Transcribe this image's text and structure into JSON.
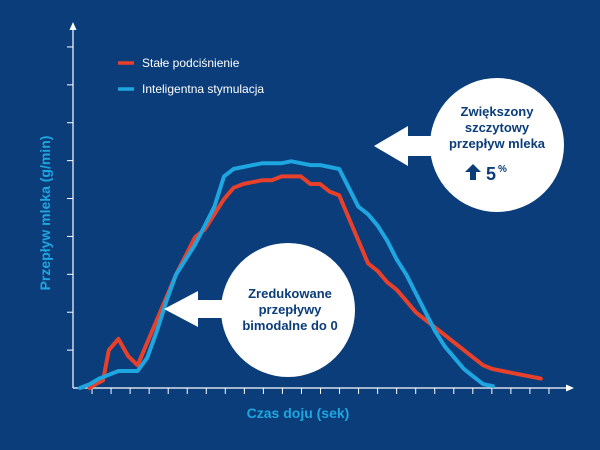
{
  "chart_data": {
    "type": "line",
    "title": "",
    "xlabel": "Czas doju (sek)",
    "ylabel": "Przepływ mleka (g/min)",
    "xlim": [
      0,
      25
    ],
    "ylim": [
      0,
      9
    ],
    "x_tick_count": 25,
    "y_tick_count": 9,
    "grid": false,
    "legend_position": "top-left",
    "series": [
      {
        "name": "Stałe podciśnienie",
        "color": "#e8402a",
        "x": [
          0.5,
          0.8,
          1.0,
          1.2,
          1.5,
          2.0,
          2.5,
          3.0,
          3.5,
          4.0,
          4.5,
          5.0,
          5.5,
          6.0,
          6.5,
          7.0,
          7.5,
          8.0,
          8.5,
          9.0,
          9.5,
          10.0,
          10.5,
          11.0,
          11.5,
          12.0,
          12.5,
          13.0,
          13.5,
          14.0,
          14.5,
          15.0,
          15.5,
          16.0,
          16.5,
          17.0,
          17.5,
          18.0,
          18.5,
          19.0,
          19.5,
          20.0,
          20.5,
          21.0,
          21.5,
          22.0,
          22.5,
          23.0,
          23.5,
          24.0
        ],
        "values": [
          0.0,
          0.1,
          0.15,
          0.2,
          1.0,
          1.3,
          0.85,
          0.6,
          1.2,
          1.8,
          2.4,
          3.0,
          3.5,
          4.0,
          4.2,
          4.6,
          5.0,
          5.3,
          5.4,
          5.45,
          5.5,
          5.5,
          5.6,
          5.6,
          5.6,
          5.4,
          5.4,
          5.2,
          5.1,
          4.5,
          3.9,
          3.3,
          3.1,
          2.8,
          2.6,
          2.3,
          2.0,
          1.8,
          1.6,
          1.4,
          1.2,
          1.0,
          0.8,
          0.6,
          0.5,
          0.45,
          0.4,
          0.35,
          0.3,
          0.25
        ]
      },
      {
        "name": "Inteligentna stymulacja",
        "color": "#1ea6e0",
        "x": [
          0.0,
          0.5,
          1.0,
          1.5,
          2.0,
          2.5,
          3.0,
          3.5,
          4.0,
          4.5,
          5.0,
          5.5,
          6.0,
          6.5,
          7.0,
          7.5,
          8.0,
          8.5,
          9.0,
          9.5,
          10.0,
          10.5,
          11.0,
          11.5,
          12.0,
          12.5,
          13.0,
          13.5,
          14.0,
          14.5,
          15.0,
          15.5,
          16.0,
          16.5,
          17.0,
          17.5,
          18.0,
          18.5,
          19.0,
          19.5,
          20.0,
          20.5,
          21.0,
          21.5
        ],
        "values": [
          0.0,
          0.1,
          0.25,
          0.35,
          0.45,
          0.45,
          0.45,
          0.8,
          1.5,
          2.3,
          3.0,
          3.4,
          3.8,
          4.3,
          4.8,
          5.6,
          5.8,
          5.85,
          5.9,
          5.95,
          5.95,
          5.95,
          6.0,
          5.95,
          5.9,
          5.9,
          5.85,
          5.8,
          5.3,
          4.8,
          4.6,
          4.3,
          3.9,
          3.4,
          3.0,
          2.5,
          2.0,
          1.5,
          1.1,
          0.8,
          0.5,
          0.3,
          0.1,
          0.05
        ]
      }
    ],
    "annotations": [
      {
        "lines": [
          "Zwiększony",
          "szczytowy",
          "przepływ mleka"
        ],
        "emphasis": "5",
        "emphasis_suffix": "%"
      },
      {
        "lines": [
          "Zredukowane",
          "przepływy",
          "bimodalne do 0"
        ]
      }
    ]
  },
  "colors": {
    "background": "#0a3d7a",
    "axis": "#ffffff",
    "axis_title": "#1ea6e0",
    "callout_fill": "#ffffff",
    "callout_text": "#0a3d7a"
  },
  "icons": {
    "callout_arrow": "arrow-left-icon",
    "increase": "arrow-up-icon"
  }
}
